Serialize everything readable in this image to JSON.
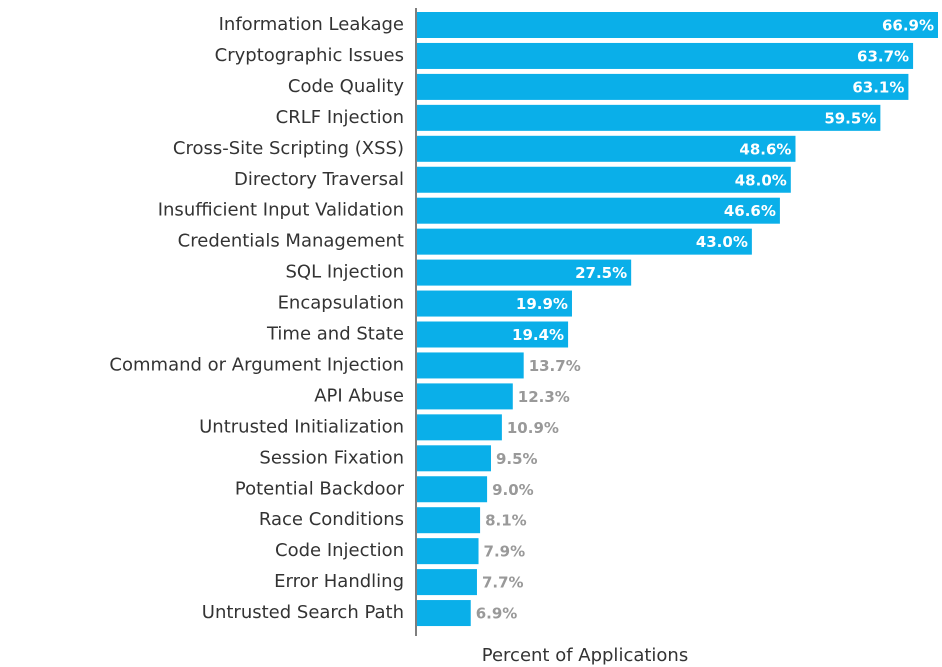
{
  "chart_data": {
    "type": "bar",
    "orientation": "horizontal",
    "x_label": "Percent of Applications",
    "categories": [
      "Information Leakage",
      "Cryptographic Issues",
      "Code Quality",
      "CRLF Injection",
      "Cross-Site Scripting (XSS)",
      "Directory Traversal",
      "Insufficient Input Validation",
      "Credentials Management",
      "SQL Injection",
      "Encapsulation",
      "Time and State",
      "Command or Argument Injection",
      "API Abuse",
      "Untrusted Initialization",
      "Session Fixation",
      "Potential Backdoor",
      "Race Conditions",
      "Code Injection",
      "Error Handling",
      "Untrusted Search Path"
    ],
    "values": [
      66.9,
      63.7,
      63.1,
      59.5,
      48.6,
      48.0,
      46.6,
      43.0,
      27.5,
      19.9,
      19.4,
      13.7,
      12.3,
      10.9,
      9.5,
      9.0,
      8.1,
      7.9,
      7.7,
      6.9
    ],
    "value_labels": [
      "66.9%",
      "63.7%",
      "63.1%",
      "59.5%",
      "48.6%",
      "48.0%",
      "46.6%",
      "43.0%",
      "27.5%",
      "19.9%",
      "19.4%",
      "13.7%",
      "12.3%",
      "10.9%",
      "9.5%",
      "9.0%",
      "8.1%",
      "7.9%",
      "7.7%",
      "6.9%"
    ],
    "color": "#0aafe9"
  }
}
